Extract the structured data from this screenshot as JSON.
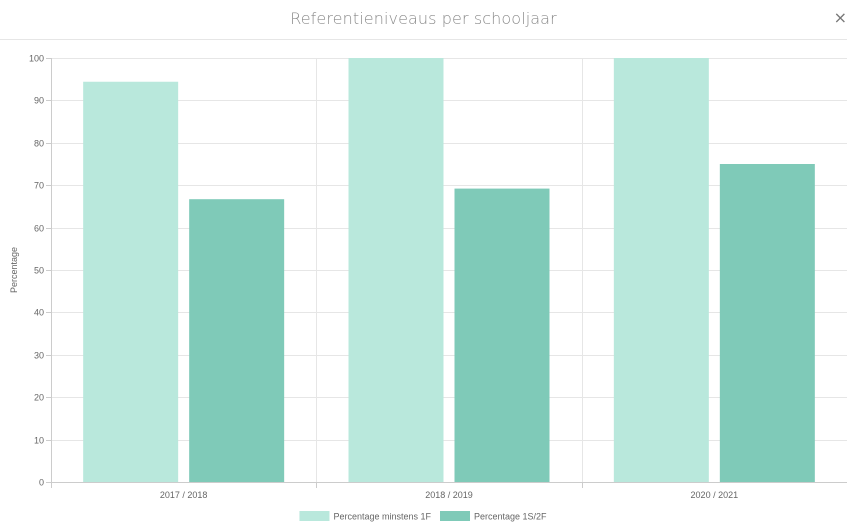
{
  "dialog": {
    "title": "Referentieniveaus per schooljaar",
    "close_label": "×"
  },
  "chart_data": {
    "type": "bar",
    "title": "Referentieniveaus per schooljaar",
    "xlabel": "",
    "ylabel": "Percentage",
    "ylim": [
      0,
      100
    ],
    "yticks": [
      0,
      10,
      20,
      30,
      40,
      50,
      60,
      70,
      80,
      90,
      100
    ],
    "categories": [
      "2017 / 2018",
      "2018 / 2019",
      "2020 / 2021"
    ],
    "series": [
      {
        "name": "Percentage minstens 1F",
        "color": "#b9e8dc",
        "values": [
          94.4,
          100,
          100
        ]
      },
      {
        "name": "Percentage 1S/2F",
        "color": "#7fcab8",
        "values": [
          66.7,
          69.2,
          75
        ]
      }
    ],
    "grid": true,
    "legend": "bottom-center"
  }
}
